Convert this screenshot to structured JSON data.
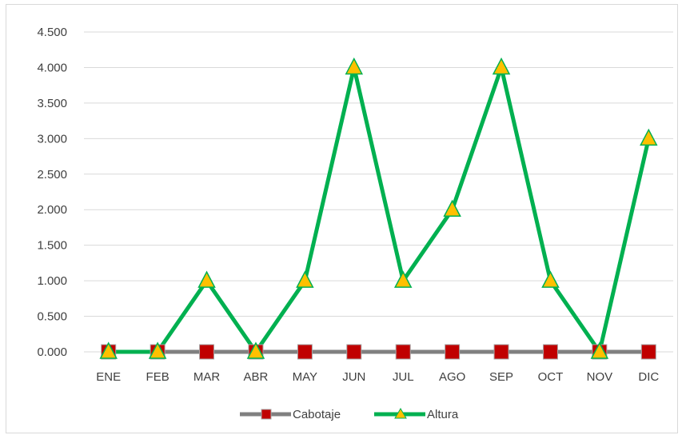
{
  "chart_data": {
    "type": "line",
    "title": "",
    "xlabel": "",
    "ylabel": "",
    "categories": [
      "ENE",
      "FEB",
      "MAR",
      "ABR",
      "MAY",
      "JUN",
      "JUL",
      "AGO",
      "SEP",
      "OCT",
      "NOV",
      "DIC"
    ],
    "ylim": [
      0,
      4.5
    ],
    "y_ticks": [
      "0.000",
      "0.500",
      "1.000",
      "1.500",
      "2.000",
      "2.500",
      "3.000",
      "3.500",
      "4.000",
      "4.500"
    ],
    "grid": true,
    "legend_position": "bottom",
    "series": [
      {
        "name": "Cabotaje",
        "values": [
          0,
          0,
          0,
          0,
          0,
          0,
          0,
          0,
          0,
          0,
          0,
          0
        ],
        "line_color": "#808080",
        "marker": "square",
        "marker_color": "#c00000"
      },
      {
        "name": "Altura",
        "values": [
          0,
          0,
          1,
          0,
          1,
          4,
          1,
          2,
          4,
          1,
          0,
          3
        ],
        "line_color": "#00b050",
        "marker": "triangle",
        "marker_color": "#ffc000"
      }
    ]
  }
}
